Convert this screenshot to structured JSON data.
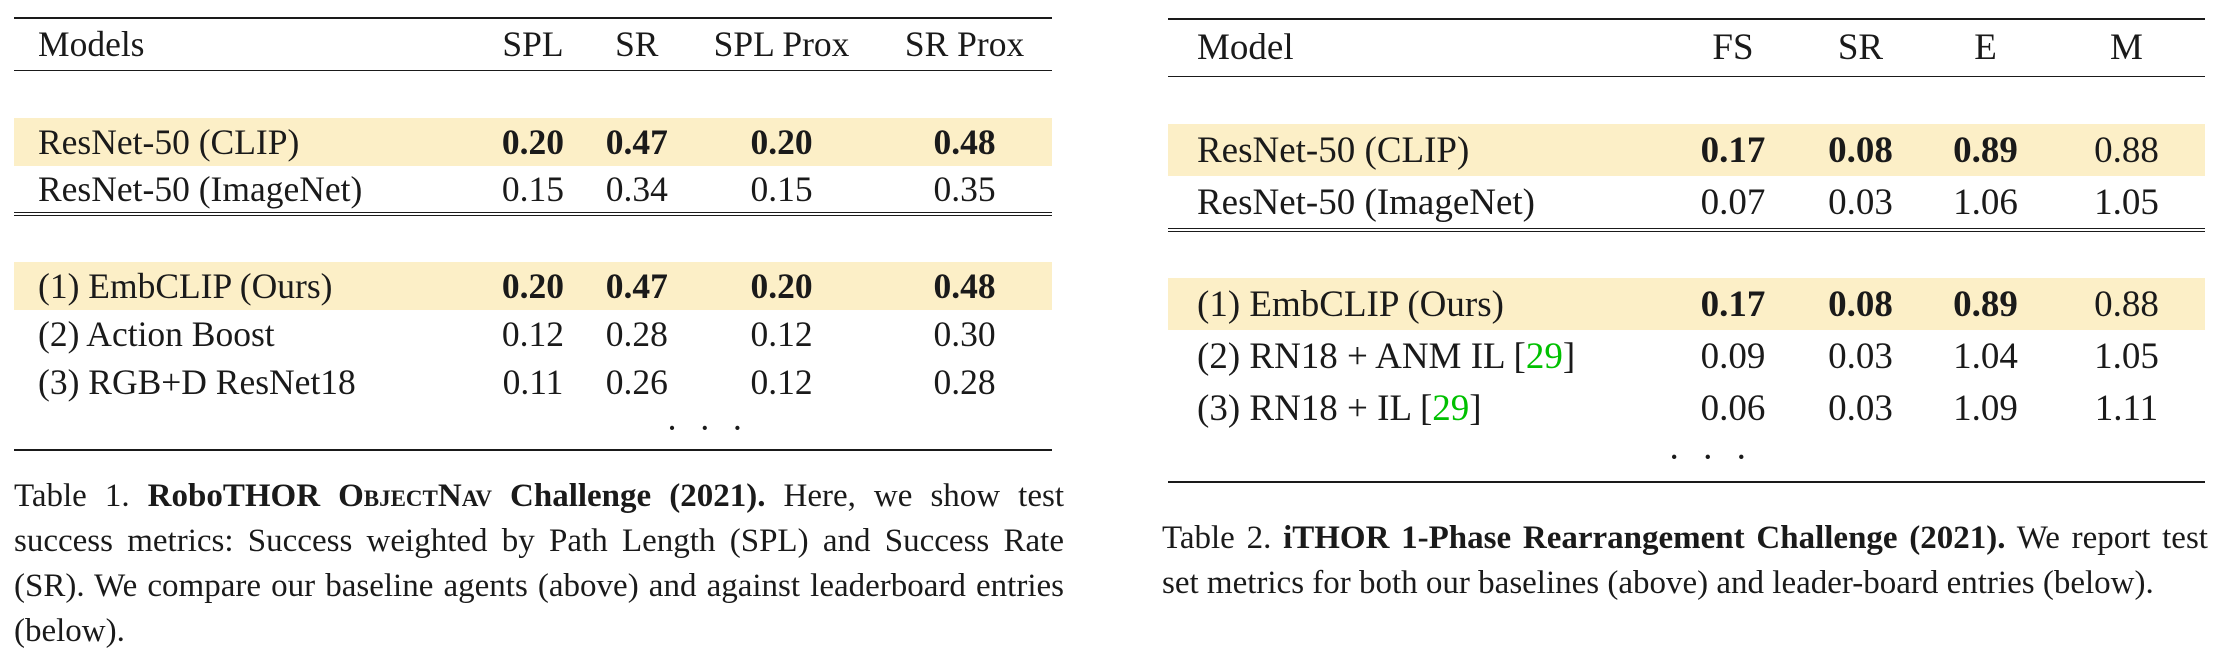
{
  "table1": {
    "headers": [
      "Models",
      "SPL",
      "SR",
      "SPL Prox",
      "SR Prox"
    ],
    "baselines": [
      {
        "name": "ResNet-50 (CLIP)",
        "values": [
          "0.20",
          "0.47",
          "0.20",
          "0.48"
        ],
        "bold": true,
        "highlight": true
      },
      {
        "name": "ResNet-50 (ImageNet)",
        "values": [
          "0.15",
          "0.34",
          "0.15",
          "0.35"
        ],
        "bold": false,
        "highlight": false
      }
    ],
    "leaderboard": [
      {
        "name": "(1) EmbCLIP (Ours)",
        "values": [
          "0.20",
          "0.47",
          "0.20",
          "0.48"
        ],
        "bold": true,
        "highlight": true
      },
      {
        "name": "(2) Action Boost",
        "values": [
          "0.12",
          "0.28",
          "0.12",
          "0.30"
        ],
        "bold": false,
        "highlight": false
      },
      {
        "name": "(3) RGB+D ResNet18",
        "values": [
          "0.11",
          "0.26",
          "0.12",
          "0.28"
        ],
        "bold": false,
        "highlight": false
      }
    ],
    "ellipsis": "· · ·",
    "caption": {
      "prefix": "Table 1. ",
      "bold_a": "RoboTHOR ",
      "smallcaps": "ObjectNav",
      "bold_b": " Challenge (2021).",
      "text": " Here, we show test success metrics: Success weighted by Path Length (SPL) and Success Rate (SR). We compare our baseline agents (above) and against leaderboard entries (below)."
    }
  },
  "table2": {
    "headers": [
      "Model",
      "FS",
      "SR",
      "E",
      "M"
    ],
    "baselines": [
      {
        "name": "ResNet-50 (CLIP)",
        "values": [
          "0.17",
          "0.08",
          "0.89",
          "0.88"
        ],
        "bold": [
          true,
          true,
          true,
          false
        ],
        "highlight": true
      },
      {
        "name": "ResNet-50 (ImageNet)",
        "values": [
          "0.07",
          "0.03",
          "1.06",
          "1.05"
        ],
        "bold": [
          false,
          false,
          false,
          false
        ],
        "highlight": false
      }
    ],
    "leaderboard": [
      {
        "name": "(1) EmbCLIP (Ours)",
        "cite": "",
        "values": [
          "0.17",
          "0.08",
          "0.89",
          "0.88"
        ],
        "bold": [
          true,
          true,
          true,
          false
        ],
        "highlight": true
      },
      {
        "name": "(2) RN18 + ANM IL [",
        "cite": "29",
        "close": "]",
        "values": [
          "0.09",
          "0.03",
          "1.04",
          "1.05"
        ],
        "bold": [
          false,
          false,
          false,
          false
        ],
        "highlight": false
      },
      {
        "name": "(3) RN18 + IL [",
        "cite": "29",
        "close": "]",
        "values": [
          "0.06",
          "0.03",
          "1.09",
          "1.11"
        ],
        "bold": [
          false,
          false,
          false,
          false
        ],
        "highlight": false
      }
    ],
    "ellipsis": "· · ·",
    "caption": {
      "prefix": "Table 2. ",
      "bold": "iTHOR 1-Phase Rearrangement Challenge (2021).",
      "text": " We report test set metrics for both our baselines (above) and leader-board entries (below)."
    }
  },
  "colors": {
    "highlight": "#fcefc7",
    "citation": "#00c000",
    "text": "#1a1a1a"
  }
}
